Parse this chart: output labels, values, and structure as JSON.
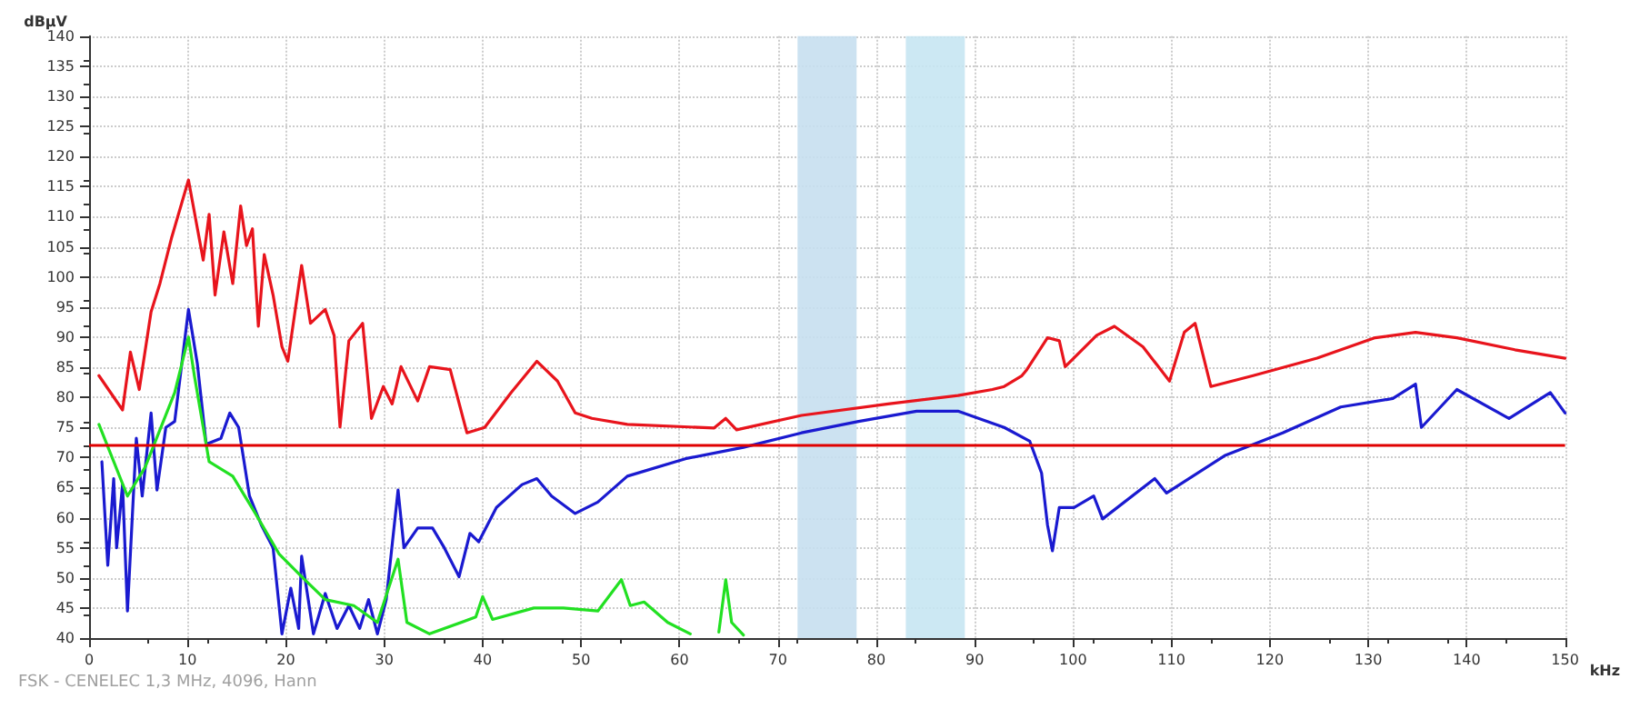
{
  "chart_data": {
    "type": "line",
    "xlabel": "kHz",
    "ylabel": "dBμV",
    "xlim": [
      0,
      150
    ],
    "xticks": [
      0,
      10,
      20,
      30,
      40,
      50,
      60,
      70,
      80,
      90,
      100,
      110,
      120,
      130,
      140,
      150
    ],
    "ylim": [
      40,
      140
    ],
    "yticks": [
      40,
      45,
      50,
      55,
      60,
      65,
      70,
      75,
      80,
      85,
      90,
      95,
      100,
      105,
      110,
      115,
      120,
      125,
      130,
      135,
      140
    ],
    "grid": true,
    "marker": "none",
    "line_style": "solid",
    "series": [
      {
        "color": "#e8141c",
        "x": [
          1.0,
          3.4,
          4.2,
          5.1,
          6.3,
          7.2,
          8.4,
          10.1,
          11.6,
          12.2,
          12.8,
          13.7,
          14.6,
          15.4,
          16.0,
          16.6,
          17.2,
          17.8,
          18.7,
          19.6,
          20.2,
          21.6,
          22.5,
          24.0,
          24.9,
          25.5,
          26.4,
          27.8,
          28.7,
          29.9,
          30.8,
          31.7,
          33.4,
          34.6,
          36.7,
          38.4,
          40.2,
          42.9,
          45.5,
          47.6,
          49.4,
          51.1,
          54.7,
          63.5,
          64.7,
          65.8,
          72.4,
          81.2,
          88.3,
          91.8,
          93.0,
          94.8,
          95.3,
          97.4,
          98.6,
          99.2,
          102.4,
          104.2,
          107.1,
          109.8,
          111.3,
          112.4,
          114.0,
          118.3,
          124.8,
          130.7,
          134.8,
          139.0,
          144.9,
          150
        ],
        "values": [
          83.6,
          77.9,
          87.5,
          81.3,
          94.2,
          98.9,
          106.6,
          116.1,
          102.8,
          110.4,
          97.0,
          107.5,
          98.9,
          111.8,
          105.2,
          108.0,
          91.8,
          103.7,
          97.0,
          88.4,
          86.0,
          101.9,
          92.3,
          94.6,
          90.3,
          75.1,
          89.4,
          92.3,
          76.5,
          81.8,
          78.9,
          85.1,
          79.4,
          85.1,
          84.6,
          74.1,
          75.0,
          80.8,
          86.0,
          82.7,
          77.4,
          76.5,
          75.5,
          74.9,
          76.5,
          74.6,
          77.0,
          78.9,
          80.3,
          81.3,
          81.8,
          83.6,
          84.6,
          89.9,
          89.4,
          85.1,
          90.3,
          91.8,
          88.4,
          82.7,
          90.8,
          92.3,
          81.8,
          83.6,
          86.5,
          89.9,
          90.8,
          89.9,
          87.9,
          86.5
        ]
      },
      {
        "color": "#1a1ad0",
        "x": [
          1.3,
          1.9,
          2.5,
          2.8,
          3.4,
          3.9,
          4.8,
          5.4,
          6.3,
          6.9,
          7.8,
          8.7,
          10.1,
          11.0,
          11.9,
          13.4,
          14.3,
          15.2,
          16.3,
          17.5,
          18.7,
          19.6,
          20.5,
          21.3,
          21.6,
          22.8,
          24.0,
          25.2,
          26.4,
          27.5,
          28.4,
          29.3,
          30.2,
          31.4,
          32.0,
          33.4,
          34.9,
          36.1,
          37.6,
          38.7,
          39.6,
          41.4,
          44.0,
          45.5,
          47.0,
          49.4,
          51.7,
          54.7,
          60.6,
          66.5,
          72.4,
          78.2,
          84.1,
          88.3,
          93.0,
          95.6,
          96.8,
          97.4,
          97.9,
          98.6,
          100.1,
          102.1,
          103.0,
          108.3,
          109.5,
          115.4,
          121.3,
          127.2,
          132.5,
          134.8,
          135.4,
          139.0,
          144.3,
          148.5,
          150
        ],
        "values": [
          69.3,
          52.1,
          66.5,
          55.0,
          65.5,
          44.5,
          73.2,
          63.6,
          77.4,
          64.6,
          75.0,
          76.0,
          94.6,
          85.6,
          72.2,
          73.2,
          77.4,
          75.0,
          63.6,
          58.8,
          55.0,
          40.7,
          48.3,
          41.6,
          53.6,
          40.7,
          47.4,
          41.6,
          45.4,
          41.6,
          46.4,
          40.7,
          46.4,
          64.6,
          55.0,
          58.3,
          58.3,
          55.0,
          50.2,
          57.4,
          56.0,
          61.7,
          65.5,
          66.5,
          63.6,
          60.7,
          62.6,
          66.9,
          69.8,
          71.7,
          74.1,
          76.0,
          77.7,
          77.7,
          75.0,
          72.7,
          67.4,
          58.8,
          54.5,
          61.7,
          61.7,
          63.6,
          59.8,
          66.5,
          64.1,
          70.3,
          74.1,
          78.4,
          79.8,
          82.2,
          75.0,
          81.3,
          76.5,
          80.8,
          77.4
        ]
      },
      {
        "color": "#22e022",
        "x": [
          1.0,
          3.9,
          5.7,
          8.7,
          10.1,
          10.7,
          12.2,
          14.6,
          16.9,
          19.3,
          21.6,
          24.0,
          26.9,
          29.3,
          31.4,
          32.3,
          34.6,
          39.3,
          40.0,
          41.0,
          45.2,
          48.2,
          51.7,
          54.1,
          55.0,
          56.4,
          58.8,
          61.1,
          62.5,
          64.0,
          64.7,
          65.3,
          66.5
        ],
        "values": [
          75.5,
          63.6,
          68.4,
          80.8,
          90.0,
          83.6,
          69.3,
          66.9,
          60.7,
          54.0,
          50.2,
          46.4,
          45.4,
          42.6,
          53.1,
          42.6,
          40.7,
          43.5,
          46.9,
          43.1,
          45.0,
          45.0,
          44.5,
          49.7,
          45.4,
          46.0,
          42.6,
          40.7,
          null,
          41.0,
          49.7,
          42.6,
          40.5
        ]
      }
    ],
    "ref_lines": [
      {
        "axis": "y",
        "value": 72,
        "color": "#e00000"
      }
    ],
    "bands": [
      {
        "axis": "x",
        "from": 72,
        "to": 78,
        "color": "#c6dff0"
      },
      {
        "axis": "x",
        "from": 83,
        "to": 89,
        "color": "#c6e6f2"
      }
    ],
    "annotations": [
      "FSK - CENELEC 1,3 MHz, 4096, Hann"
    ]
  }
}
